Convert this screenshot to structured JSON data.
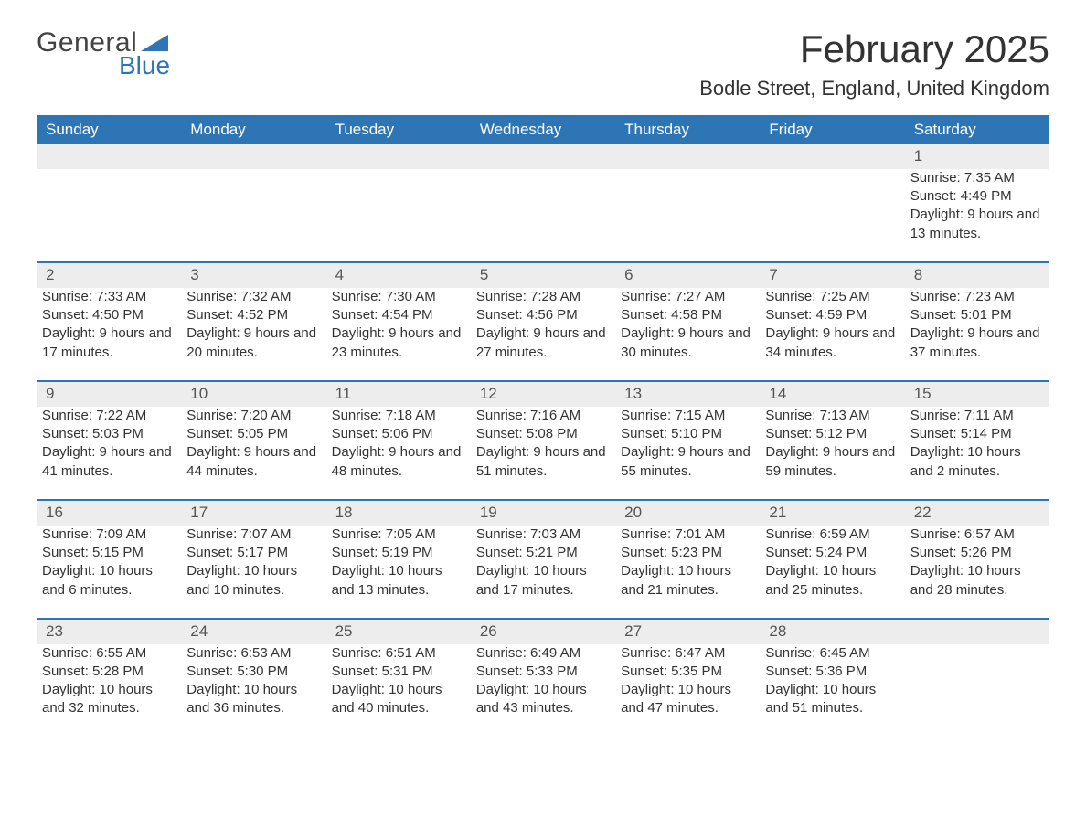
{
  "logo": {
    "word1": "General",
    "word2": "Blue"
  },
  "title": "February 2025",
  "location": "Bodle Street, England, United Kingdom",
  "colors": {
    "header_bg": "#2e75b6",
    "header_text": "#ffffff",
    "daynum_bg": "#ededed",
    "text": "#333333",
    "logo_blue": "#2e75b6"
  },
  "weekdays": [
    "Sunday",
    "Monday",
    "Tuesday",
    "Wednesday",
    "Thursday",
    "Friday",
    "Saturday"
  ],
  "labels": {
    "sunrise": "Sunrise:",
    "sunset": "Sunset:",
    "daylight": "Daylight:"
  },
  "weeks": [
    [
      null,
      null,
      null,
      null,
      null,
      null,
      {
        "n": "1",
        "sr": "7:35 AM",
        "ss": "4:49 PM",
        "dl": "9 hours and 13 minutes."
      }
    ],
    [
      {
        "n": "2",
        "sr": "7:33 AM",
        "ss": "4:50 PM",
        "dl": "9 hours and 17 minutes."
      },
      {
        "n": "3",
        "sr": "7:32 AM",
        "ss": "4:52 PM",
        "dl": "9 hours and 20 minutes."
      },
      {
        "n": "4",
        "sr": "7:30 AM",
        "ss": "4:54 PM",
        "dl": "9 hours and 23 minutes."
      },
      {
        "n": "5",
        "sr": "7:28 AM",
        "ss": "4:56 PM",
        "dl": "9 hours and 27 minutes."
      },
      {
        "n": "6",
        "sr": "7:27 AM",
        "ss": "4:58 PM",
        "dl": "9 hours and 30 minutes."
      },
      {
        "n": "7",
        "sr": "7:25 AM",
        "ss": "4:59 PM",
        "dl": "9 hours and 34 minutes."
      },
      {
        "n": "8",
        "sr": "7:23 AM",
        "ss": "5:01 PM",
        "dl": "9 hours and 37 minutes."
      }
    ],
    [
      {
        "n": "9",
        "sr": "7:22 AM",
        "ss": "5:03 PM",
        "dl": "9 hours and 41 minutes."
      },
      {
        "n": "10",
        "sr": "7:20 AM",
        "ss": "5:05 PM",
        "dl": "9 hours and 44 minutes."
      },
      {
        "n": "11",
        "sr": "7:18 AM",
        "ss": "5:06 PM",
        "dl": "9 hours and 48 minutes."
      },
      {
        "n": "12",
        "sr": "7:16 AM",
        "ss": "5:08 PM",
        "dl": "9 hours and 51 minutes."
      },
      {
        "n": "13",
        "sr": "7:15 AM",
        "ss": "5:10 PM",
        "dl": "9 hours and 55 minutes."
      },
      {
        "n": "14",
        "sr": "7:13 AM",
        "ss": "5:12 PM",
        "dl": "9 hours and 59 minutes."
      },
      {
        "n": "15",
        "sr": "7:11 AM",
        "ss": "5:14 PM",
        "dl": "10 hours and 2 minutes."
      }
    ],
    [
      {
        "n": "16",
        "sr": "7:09 AM",
        "ss": "5:15 PM",
        "dl": "10 hours and 6 minutes."
      },
      {
        "n": "17",
        "sr": "7:07 AM",
        "ss": "5:17 PM",
        "dl": "10 hours and 10 minutes."
      },
      {
        "n": "18",
        "sr": "7:05 AM",
        "ss": "5:19 PM",
        "dl": "10 hours and 13 minutes."
      },
      {
        "n": "19",
        "sr": "7:03 AM",
        "ss": "5:21 PM",
        "dl": "10 hours and 17 minutes."
      },
      {
        "n": "20",
        "sr": "7:01 AM",
        "ss": "5:23 PM",
        "dl": "10 hours and 21 minutes."
      },
      {
        "n": "21",
        "sr": "6:59 AM",
        "ss": "5:24 PM",
        "dl": "10 hours and 25 minutes."
      },
      {
        "n": "22",
        "sr": "6:57 AM",
        "ss": "5:26 PM",
        "dl": "10 hours and 28 minutes."
      }
    ],
    [
      {
        "n": "23",
        "sr": "6:55 AM",
        "ss": "5:28 PM",
        "dl": "10 hours and 32 minutes."
      },
      {
        "n": "24",
        "sr": "6:53 AM",
        "ss": "5:30 PM",
        "dl": "10 hours and 36 minutes."
      },
      {
        "n": "25",
        "sr": "6:51 AM",
        "ss": "5:31 PM",
        "dl": "10 hours and 40 minutes."
      },
      {
        "n": "26",
        "sr": "6:49 AM",
        "ss": "5:33 PM",
        "dl": "10 hours and 43 minutes."
      },
      {
        "n": "27",
        "sr": "6:47 AM",
        "ss": "5:35 PM",
        "dl": "10 hours and 47 minutes."
      },
      {
        "n": "28",
        "sr": "6:45 AM",
        "ss": "5:36 PM",
        "dl": "10 hours and 51 minutes."
      },
      null
    ]
  ]
}
